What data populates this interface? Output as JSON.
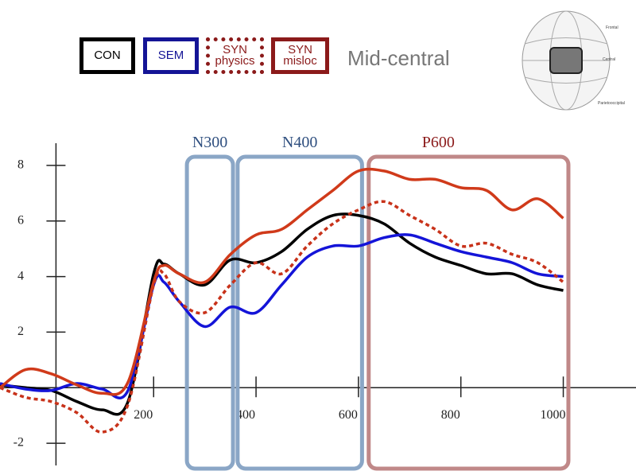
{
  "chart_data": {
    "type": "line",
    "title": "Mid-central",
    "x": [
      -100,
      -50,
      0,
      50,
      100,
      150,
      200,
      220,
      250,
      300,
      350,
      400,
      450,
      500,
      550,
      600,
      650,
      700,
      750,
      800,
      850,
      900,
      950,
      1000
    ],
    "series": [
      {
        "name": "CON",
        "color": "#000000",
        "dash": false,
        "values": [
          0.1,
          0,
          -0.1,
          -0.5,
          -0.8,
          -0.5,
          4.1,
          4.45,
          4.1,
          3.7,
          4.6,
          4.5,
          4.9,
          5.7,
          6.2,
          6.2,
          5.9,
          5.2,
          4.7,
          4.4,
          4.1,
          4.1,
          3.7,
          3.5
        ]
      },
      {
        "name": "SEM",
        "color": "#1414d8",
        "dash": false,
        "values": [
          0.15,
          -0.05,
          -0.1,
          0.15,
          -0.05,
          -0.1,
          3.7,
          3.8,
          3.1,
          2.2,
          2.9,
          2.7,
          3.7,
          4.7,
          5.1,
          5.1,
          5.4,
          5.5,
          5.2,
          4.9,
          4.7,
          4.5,
          4.1,
          4.0
        ]
      },
      {
        "name": "SYN physics",
        "color": "#c8321a",
        "dash": true,
        "values": [
          0,
          -0.35,
          -0.5,
          -0.9,
          -1.6,
          -0.6,
          3.7,
          4.1,
          3.1,
          2.7,
          3.7,
          4.5,
          4.1,
          5.1,
          5.9,
          6.4,
          6.7,
          6.2,
          5.7,
          5.1,
          5.2,
          4.8,
          4.5,
          3.8
        ]
      },
      {
        "name": "SYN misloc",
        "color": "#d03a1a",
        "dash": false,
        "values": [
          0,
          0.65,
          0.5,
          0.1,
          -0.2,
          0.2,
          3.8,
          4.4,
          4.1,
          3.8,
          4.8,
          5.5,
          5.7,
          6.4,
          7.1,
          7.8,
          7.8,
          7.5,
          7.5,
          7.2,
          7.1,
          6.4,
          6.8,
          6.1
        ]
      }
    ],
    "legend_colors": [
      "#000000",
      "#141496",
      "#8b1a1a",
      "#8b1a1a"
    ],
    "xlim": [
      -100,
      1142
    ],
    "ylim": [
      -2.8,
      8.8
    ],
    "xticks": [
      200,
      400,
      600,
      800,
      1000
    ],
    "yticks": [
      -2,
      2,
      4,
      6,
      8
    ],
    "regions": [
      {
        "label": "N300",
        "x": [
          265,
          355
        ],
        "color": "#8aa6c6",
        "label_color": "#2f4f7f"
      },
      {
        "label": "N400",
        "x": [
          364,
          607
        ],
        "color": "#8aa6c6",
        "label_color": "#2f4f7f"
      },
      {
        "label": "P600",
        "x": [
          620,
          1010
        ],
        "color": "#c08888",
        "label_color": "#8b1a1a"
      }
    ],
    "head_map_labels": [
      "Frontal",
      "Central",
      "Parietooccipital"
    ]
  }
}
